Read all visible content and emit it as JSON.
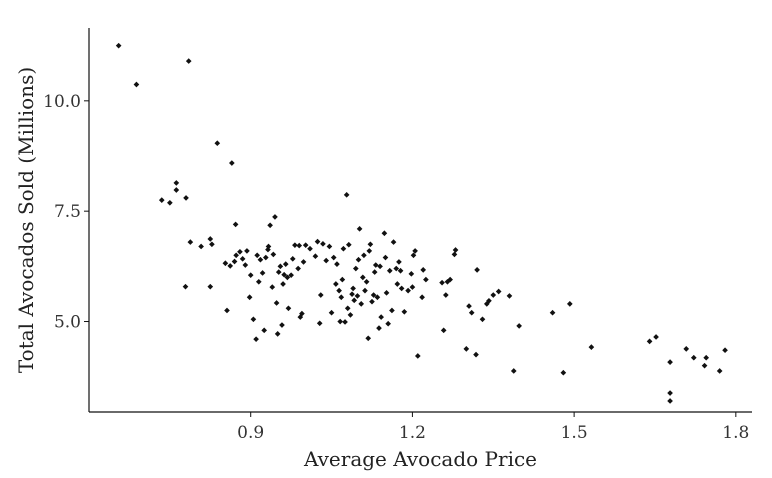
{
  "chart_data": {
    "type": "scatter",
    "title": "",
    "xlabel": "Average Avocado Price",
    "ylabel": "Total Avocados Sold (Millions)",
    "xlim": [
      0.6,
      1.83
    ],
    "ylim": [
      2.95,
      11.65
    ],
    "xticks": [
      0.9,
      1.2,
      1.5,
      1.8
    ],
    "xtick_labels": [
      "0.9",
      "1.2",
      "1.5",
      "1.8"
    ],
    "yticks": [
      5.0,
      7.5,
      10.0
    ],
    "ytick_labels": [
      "5.0",
      "7.5",
      "10.0"
    ],
    "grid": false,
    "legend": "none",
    "point_color": "#111111",
    "points": [
      [
        0.655,
        11.25
      ],
      [
        0.688,
        10.37
      ],
      [
        0.785,
        10.9
      ],
      [
        0.838,
        9.04
      ],
      [
        0.865,
        8.59
      ],
      [
        0.762,
        7.98
      ],
      [
        0.762,
        8.14
      ],
      [
        0.735,
        7.75
      ],
      [
        0.75,
        7.69
      ],
      [
        0.78,
        7.8
      ],
      [
        0.788,
        6.8
      ],
      [
        0.808,
        6.7
      ],
      [
        0.825,
        6.87
      ],
      [
        0.828,
        6.75
      ],
      [
        0.825,
        5.79
      ],
      [
        0.779,
        5.79
      ],
      [
        0.853,
        6.32
      ],
      [
        0.856,
        5.25
      ],
      [
        0.862,
        6.26
      ],
      [
        0.87,
        6.36
      ],
      [
        0.873,
        6.5
      ],
      [
        0.872,
        7.2
      ],
      [
        0.88,
        6.58
      ],
      [
        0.885,
        6.42
      ],
      [
        0.89,
        6.28
      ],
      [
        0.893,
        6.6
      ],
      [
        0.898,
        5.55
      ],
      [
        0.9,
        6.05
      ],
      [
        0.905,
        5.05
      ],
      [
        0.91,
        4.6
      ],
      [
        0.912,
        6.5
      ],
      [
        0.915,
        5.9
      ],
      [
        0.918,
        6.4
      ],
      [
        0.922,
        6.1
      ],
      [
        0.925,
        4.8
      ],
      [
        0.928,
        6.45
      ],
      [
        0.932,
        6.63
      ],
      [
        0.933,
        6.7
      ],
      [
        0.936,
        7.18
      ],
      [
        0.94,
        5.78
      ],
      [
        0.942,
        6.52
      ],
      [
        0.945,
        7.37
      ],
      [
        0.948,
        5.42
      ],
      [
        0.95,
        4.72
      ],
      [
        0.952,
        6.12
      ],
      [
        0.955,
        6.25
      ],
      [
        0.958,
        4.92
      ],
      [
        0.96,
        5.85
      ],
      [
        0.962,
        6.06
      ],
      [
        0.965,
        6.3
      ],
      [
        0.968,
        6.0
      ],
      [
        0.97,
        5.3
      ],
      [
        0.975,
        6.05
      ],
      [
        0.978,
        6.42
      ],
      [
        0.982,
        6.73
      ],
      [
        0.988,
        6.2
      ],
      [
        0.99,
        6.72
      ],
      [
        0.992,
        5.1
      ],
      [
        0.995,
        5.18
      ],
      [
        0.998,
        6.35
      ],
      [
        1.002,
        6.73
      ],
      [
        1.01,
        6.65
      ],
      [
        1.02,
        6.48
      ],
      [
        1.024,
        6.81
      ],
      [
        1.028,
        4.96
      ],
      [
        1.03,
        5.6
      ],
      [
        1.034,
        6.76
      ],
      [
        1.04,
        6.38
      ],
      [
        1.046,
        6.7
      ],
      [
        1.05,
        5.2
      ],
      [
        1.054,
        6.45
      ],
      [
        1.058,
        5.85
      ],
      [
        1.06,
        6.3
      ],
      [
        1.064,
        5.7
      ],
      [
        1.066,
        5.0
      ],
      [
        1.068,
        5.55
      ],
      [
        1.07,
        5.95
      ],
      [
        1.072,
        6.65
      ],
      [
        1.075,
        4.99
      ],
      [
        1.078,
        7.87
      ],
      [
        1.08,
        5.3
      ],
      [
        1.082,
        6.74
      ],
      [
        1.085,
        5.15
      ],
      [
        1.088,
        5.62
      ],
      [
        1.09,
        5.75
      ],
      [
        1.092,
        5.48
      ],
      [
        1.095,
        6.2
      ],
      [
        1.098,
        5.58
      ],
      [
        1.1,
        6.4
      ],
      [
        1.102,
        7.1
      ],
      [
        1.105,
        5.4
      ],
      [
        1.108,
        6.0
      ],
      [
        1.11,
        6.5
      ],
      [
        1.112,
        5.7
      ],
      [
        1.115,
        5.9
      ],
      [
        1.118,
        4.62
      ],
      [
        1.12,
        6.6
      ],
      [
        1.122,
        6.75
      ],
      [
        1.125,
        5.45
      ],
      [
        1.128,
        5.6
      ],
      [
        1.13,
        6.12
      ],
      [
        1.132,
        6.28
      ],
      [
        1.135,
        5.55
      ],
      [
        1.138,
        4.85
      ],
      [
        1.14,
        6.25
      ],
      [
        1.142,
        5.1
      ],
      [
        1.148,
        7.0
      ],
      [
        1.15,
        6.45
      ],
      [
        1.152,
        5.65
      ],
      [
        1.155,
        4.95
      ],
      [
        1.158,
        6.15
      ],
      [
        1.162,
        5.25
      ],
      [
        1.165,
        6.8
      ],
      [
        1.17,
        6.2
      ],
      [
        1.172,
        5.85
      ],
      [
        1.175,
        6.35
      ],
      [
        1.178,
        6.15
      ],
      [
        1.18,
        5.75
      ],
      [
        1.185,
        5.22
      ],
      [
        1.192,
        5.7
      ],
      [
        1.198,
        6.08
      ],
      [
        1.2,
        5.78
      ],
      [
        1.202,
        6.5
      ],
      [
        1.205,
        6.6
      ],
      [
        1.21,
        4.22
      ],
      [
        1.218,
        5.55
      ],
      [
        1.22,
        6.17
      ],
      [
        1.225,
        5.95
      ],
      [
        1.255,
        5.88
      ],
      [
        1.258,
        4.8
      ],
      [
        1.262,
        5.6
      ],
      [
        1.265,
        5.9
      ],
      [
        1.27,
        5.95
      ],
      [
        1.278,
        6.52
      ],
      [
        1.28,
        6.62
      ],
      [
        1.3,
        4.38
      ],
      [
        1.305,
        5.35
      ],
      [
        1.31,
        5.2
      ],
      [
        1.318,
        4.25
      ],
      [
        1.32,
        6.17
      ],
      [
        1.33,
        5.05
      ],
      [
        1.338,
        5.4
      ],
      [
        1.342,
        5.47
      ],
      [
        1.35,
        5.6
      ],
      [
        1.36,
        5.68
      ],
      [
        1.38,
        5.58
      ],
      [
        1.388,
        3.88
      ],
      [
        1.398,
        4.9
      ],
      [
        1.46,
        5.2
      ],
      [
        1.48,
        3.84
      ],
      [
        1.492,
        5.4
      ],
      [
        1.532,
        4.42
      ],
      [
        1.64,
        4.55
      ],
      [
        1.652,
        4.65
      ],
      [
        1.678,
        4.08
      ],
      [
        1.678,
        3.38
      ],
      [
        1.678,
        3.2
      ],
      [
        1.708,
        4.38
      ],
      [
        1.722,
        4.18
      ],
      [
        1.742,
        4.0
      ],
      [
        1.745,
        4.18
      ],
      [
        1.77,
        3.88
      ],
      [
        1.78,
        4.35
      ]
    ]
  }
}
